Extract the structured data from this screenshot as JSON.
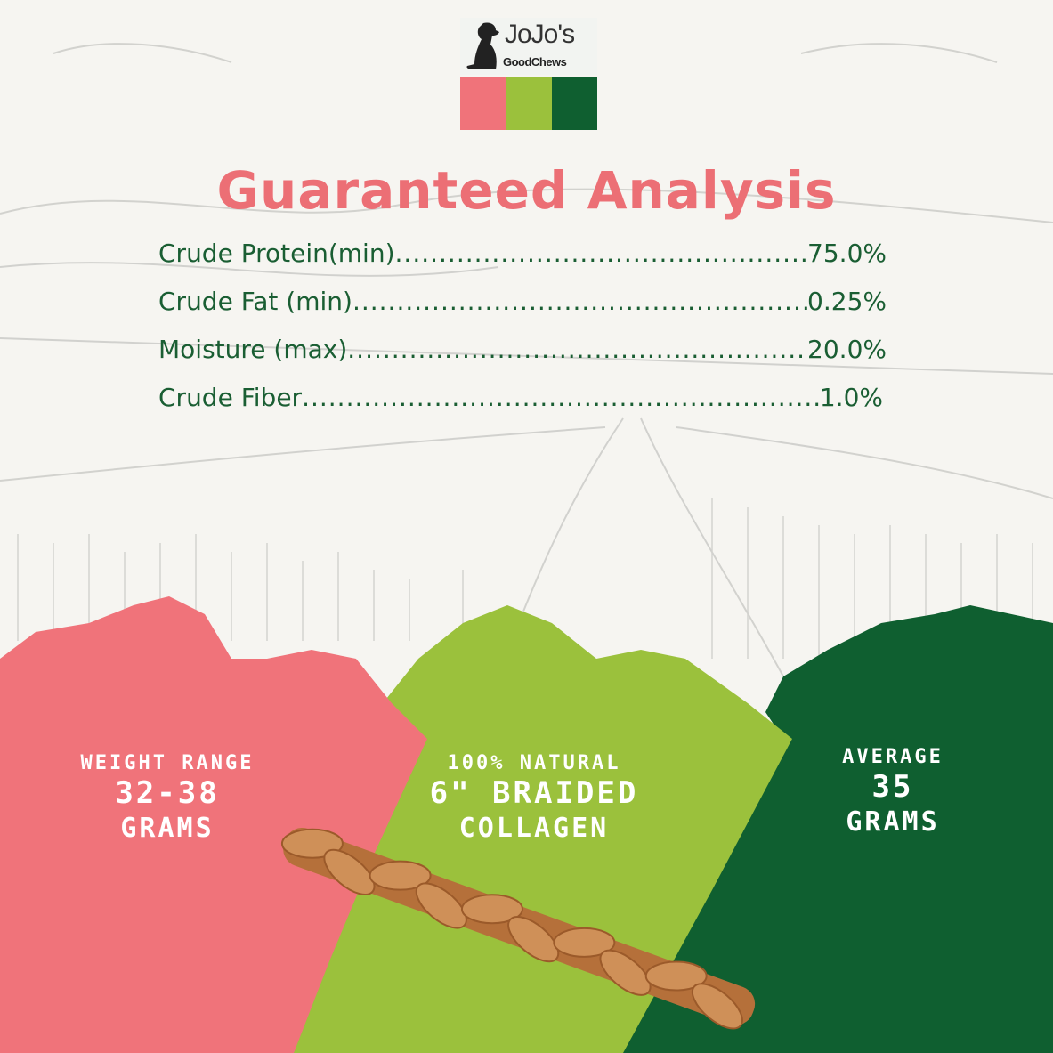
{
  "logo": {
    "brand_line1": "JoJo's",
    "brand_line2": "GoodChews",
    "colors": [
      "#f0737a",
      "#9bc13c",
      "#0f5f30"
    ]
  },
  "title": "Guaranteed Analysis",
  "analysis": [
    {
      "label": "Crude Protein(min)",
      "value": "75.0%"
    },
    {
      "label": "Crude Fat (min)",
      "value": "0.25%"
    },
    {
      "label": "Moisture (max)",
      "value": "20.0%"
    },
    {
      "label": "Crude Fiber",
      "value": "1.0%"
    }
  ],
  "features": [
    {
      "line1": "WEIGHT RANGE",
      "line2": "32-38",
      "line3": "GRAMS",
      "color": "#f0737a"
    },
    {
      "line1": "100% NATURAL",
      "line2": "6\" BRAIDED",
      "line3": "COLLAGEN",
      "color": "#9bc13c"
    },
    {
      "line1": "AVERAGE",
      "line2": "35",
      "line3": "GRAMS",
      "color": "#0f5f30"
    }
  ]
}
